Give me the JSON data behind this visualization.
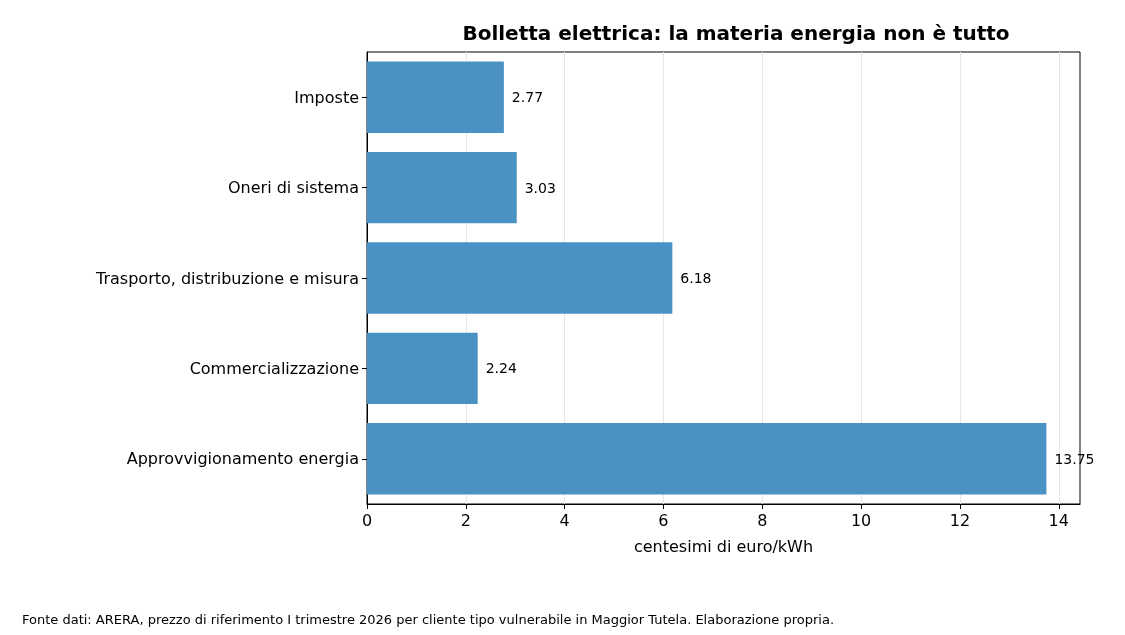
{
  "chart_data": {
    "type": "bar",
    "orientation": "horizontal",
    "title": "Bolletta elettrica: la materia energia non è tutto",
    "xlabel": "centesimi di euro/kWh",
    "categories": [
      "Imposte",
      "Oneri di sistema",
      "Trasporto, distribuzione e misura",
      "Commercializzazione",
      "Approvvigionamento energia"
    ],
    "values": [
      2.77,
      3.03,
      6.18,
      2.24,
      13.75
    ],
    "color": "#4a92c4",
    "xlim": [
      0,
      14.43
    ],
    "xticks": [
      0,
      2,
      4,
      6,
      8,
      10,
      12,
      14
    ],
    "grid": "x",
    "data_labels": true,
    "annotations": [
      "Fonte dati: ARERA, prezzo di riferimento I trimestre 2026 per cliente tipo vulnerabile in Maggior Tutela. Elaborazione propria."
    ]
  }
}
